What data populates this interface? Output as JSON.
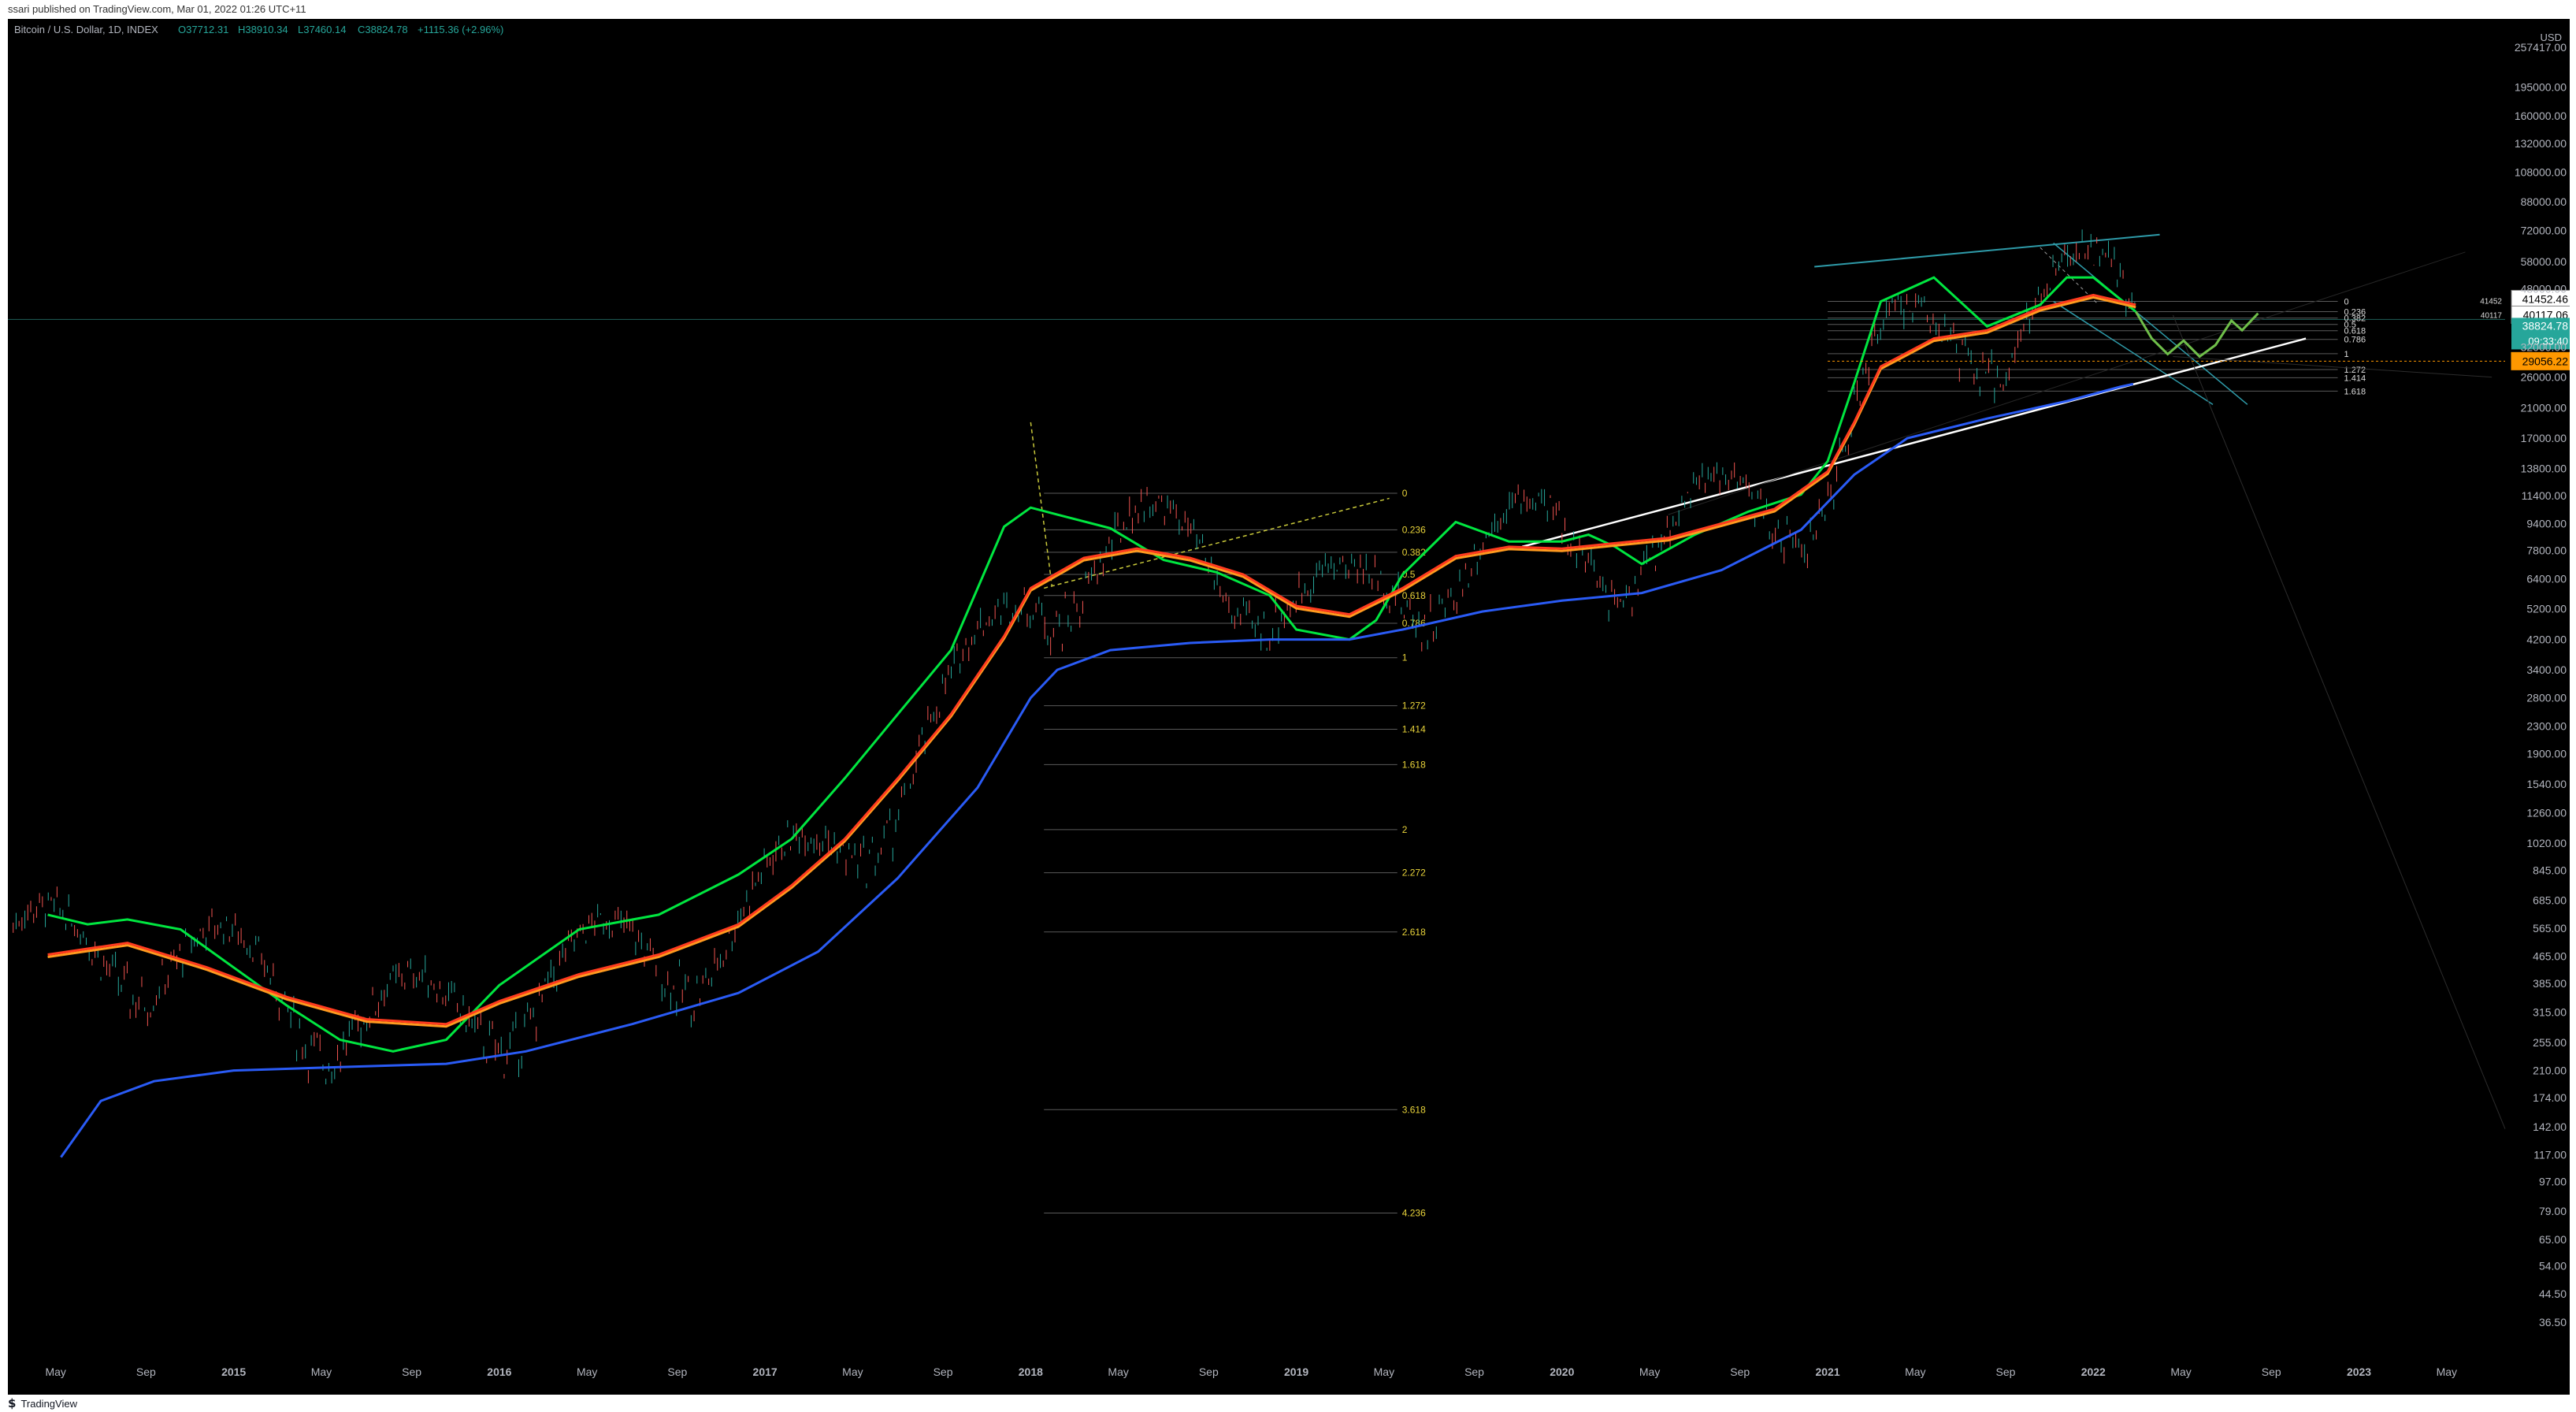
{
  "header": {
    "published": "ssari published on TradingView.com, Mar 01, 2022 01:26 UTC+11"
  },
  "legend": {
    "symbol": "Bitcoin / U.S. Dollar, 1D, INDEX",
    "open": "O37712.31",
    "high": "H38910.34",
    "low": "L37460.14",
    "close": "C38824.78",
    "change": "+1115.36 (+2.96%)"
  },
  "footer": {
    "brand": "TradingView",
    "logo_icon": "tradingview-logo-icon"
  },
  "colors": {
    "background": "#000000",
    "axis_text": "#b2b5be",
    "green_ma": "#00e640",
    "red_ma": "#ff3b1f",
    "orange_ma": "#ff9a1f",
    "blue_ma": "#2a5bf5",
    "fib_line": "#5a5a5a",
    "fib_label": "#e8d33a",
    "channel": "#2e9aa8",
    "price_badge": "#26a69a",
    "level_badge": "#ff9800"
  },
  "chart_data": {
    "type": "line",
    "yscale": "log",
    "ylim": [
      30,
      300000
    ],
    "y_unit": "USD",
    "yticks": [
      "257417.00",
      "195000.00",
      "160000.00",
      "132000.00",
      "108000.00",
      "88000.00",
      "72000.00",
      "58000.00",
      "48000.00",
      "32000.00",
      "26000.00",
      "21000.00",
      "17000.00",
      "13800.00",
      "11400.00",
      "9400.00",
      "7800.00",
      "6400.00",
      "5200.00",
      "4200.00",
      "3400.00",
      "2800.00",
      "2300.00",
      "1900.00",
      "1540.00",
      "1260.00",
      "1020.00",
      "845.00",
      "685.00",
      "565.00",
      "465.00",
      "385.00",
      "315.00",
      "255.00",
      "210.00",
      "174.00",
      "142.00",
      "117.00",
      "97.00",
      "79.00",
      "65.00",
      "54.00",
      "44.50",
      "36.50"
    ],
    "xticks": [
      "May",
      "Sep",
      "2015",
      "May",
      "Sep",
      "2016",
      "May",
      "Sep",
      "2017",
      "May",
      "Sep",
      "2018",
      "May",
      "Sep",
      "2019",
      "May",
      "Sep",
      "2020",
      "May",
      "Sep",
      "2021",
      "May",
      "Sep",
      "2022",
      "May",
      "Sep",
      "2023",
      "May"
    ],
    "price_labels": {
      "top_box": "41452.46",
      "second_box": "40117.06",
      "current_price": "38824.78",
      "countdown": "09:33:40",
      "level": "29056.22"
    },
    "small_axis_notes": [
      "41452",
      "40117"
    ],
    "series": [
      {
        "name": "",
        "color": "#00e640",
        "x": [
          2014.3,
          2014.45,
          2014.6,
          2014.8,
          2015.0,
          2015.2,
          2015.4,
          2015.6,
          2015.8,
          2016.0,
          2016.3,
          2016.6,
          2016.9,
          2017.1,
          2017.3,
          2017.5,
          2017.7,
          2017.9,
          2018.0,
          2018.1,
          2018.3,
          2018.5,
          2018.7,
          2018.9,
          2019.0,
          2019.2,
          2019.3,
          2019.4,
          2019.6,
          2019.8,
          2020.0,
          2020.1,
          2020.2,
          2020.3,
          2020.5,
          2020.7,
          2020.9,
          2021.0,
          2021.1,
          2021.2,
          2021.4,
          2021.6,
          2021.8,
          2021.9,
          2022.0,
          2022.16
        ],
        "y": [
          620,
          580,
          600,
          560,
          430,
          330,
          260,
          240,
          260,
          380,
          560,
          620,
          820,
          1050,
          1600,
          2500,
          3900,
          9200,
          10500,
          10000,
          9100,
          7300,
          6700,
          5700,
          4500,
          4200,
          4800,
          6600,
          9500,
          8300,
          8300,
          8700,
          8000,
          7100,
          8700,
          10200,
          11500,
          14500,
          25000,
          44000,
          52000,
          37000,
          43000,
          52000,
          52000,
          41000
        ]
      },
      {
        "name": "",
        "color": "#ff3b1f",
        "x": [
          2014.3,
          2014.6,
          2014.9,
          2015.2,
          2015.5,
          2015.8,
          2016.0,
          2016.3,
          2016.6,
          2016.9,
          2017.1,
          2017.3,
          2017.5,
          2017.7,
          2017.9,
          2018.0,
          2018.2,
          2018.4,
          2018.6,
          2018.8,
          2019.0,
          2019.2,
          2019.4,
          2019.6,
          2019.8,
          2020.0,
          2020.2,
          2020.4,
          2020.6,
          2020.8,
          2021.0,
          2021.1,
          2021.2,
          2021.4,
          2021.6,
          2021.8,
          2022.0,
          2022.16
        ],
        "y": [
          470,
          510,
          430,
          350,
          300,
          290,
          340,
          410,
          470,
          580,
          760,
          1050,
          1600,
          2500,
          4300,
          6000,
          7400,
          7900,
          7400,
          6600,
          5300,
          5000,
          6000,
          7500,
          8000,
          7900,
          8200,
          8500,
          9400,
          10400,
          13500,
          19000,
          28000,
          34000,
          36000,
          42000,
          46000,
          43000
        ]
      },
      {
        "name": "",
        "color": "#2a5bf5",
        "x": [
          2014.35,
          2014.5,
          2014.7,
          2015.0,
          2015.4,
          2015.8,
          2016.1,
          2016.5,
          2016.9,
          2017.2,
          2017.5,
          2017.8,
          2018.0,
          2018.1,
          2018.3,
          2018.6,
          2018.9,
          2019.2,
          2019.4,
          2019.7,
          2020.0,
          2020.3,
          2020.6,
          2020.9,
          2021.1,
          2021.3,
          2021.6,
          2021.9,
          2022.1,
          2022.15
        ],
        "y": [
          115,
          170,
          195,
          210,
          215,
          220,
          240,
          290,
          360,
          480,
          800,
          1500,
          2800,
          3400,
          3900,
          4100,
          4200,
          4200,
          4500,
          5100,
          5500,
          5800,
          6800,
          9000,
          13200,
          17000,
          19500,
          22000,
          24300,
          24800
        ]
      }
    ],
    "fib_2018": {
      "levels": [
        "0",
        "0.236",
        "0.382",
        "0.5",
        "0.618",
        "0.786",
        "1",
        "1.272",
        "1.414",
        "1.618",
        "2",
        "2.272",
        "2.618",
        "3.618",
        "4.236"
      ],
      "prices": [
        11600,
        9000,
        7700,
        6600,
        5700,
        4700,
        3700,
        2650,
        2250,
        1760,
        1120,
        830,
        550,
        160,
        78
      ]
    },
    "fib_2022": {
      "levels": [
        "0",
        "0.236",
        "0.382",
        "0.5",
        "0.618",
        "0.786",
        "1",
        "1.272",
        "1.414",
        "1.618"
      ],
      "prices": [
        44000,
        41000,
        39200,
        37500,
        35900,
        33800,
        30600,
        27400,
        25900,
        23600
      ]
    }
  }
}
